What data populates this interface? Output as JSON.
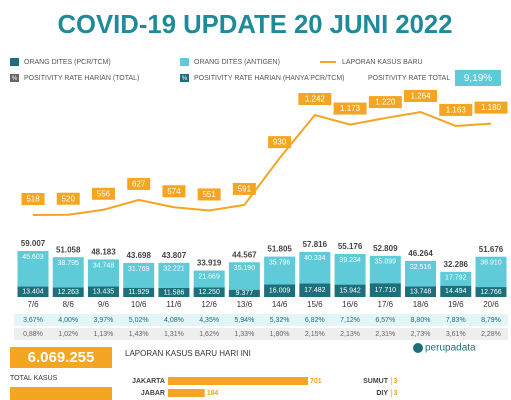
{
  "title": "COVID-19 UPDATE 20 JUNI 2022",
  "legend_icon": "%",
  "logo": "perupadata",
  "total_cases": {
    "value": 6069255,
    "value_label": "6.069.255",
    "label": "TOTAL KASUS"
  },
  "chart_data": [
    {
      "type": "combo",
      "categories": [
        "7/6",
        "8/6",
        "9/6",
        "10/6",
        "11/6",
        "12/6",
        "13/6",
        "14/6",
        "15/6",
        "16/6",
        "17/6",
        "18/6",
        "19/6",
        "20/6"
      ],
      "series": [
        {
          "name": "ORANG DITES (PCR/TCM)",
          "color": "#1d6f7c",
          "kind": "bar",
          "values": [
            13404,
            12263,
            13435,
            11929,
            11586,
            12250,
            9377,
            16009,
            17482,
            15942,
            17710,
            13748,
            14494,
            12766
          ],
          "value_labels": [
            "13.404",
            "12.263",
            "13.435",
            "11.929",
            "11.586",
            "12.250",
            "9.377",
            "16.009",
            "17.482",
            "15.942",
            "17.710",
            "13.748",
            "14.494",
            "12.766"
          ]
        },
        {
          "name": "ORANG DITES (ANTIGEN)",
          "color": "#5fcad8",
          "kind": "bar",
          "values": [
            45603,
            38795,
            34748,
            31769,
            32221,
            21669,
            35190,
            35796,
            40334,
            39234,
            35099,
            32516,
            17792,
            38910
          ],
          "value_labels": [
            "45.603",
            "38.795",
            "34.748",
            "31.769",
            "32.221",
            "21.669",
            "35.190",
            "35.796",
            "40.334",
            "39.234",
            "35.099",
            "32.516",
            "17.792",
            "38.910"
          ]
        },
        {
          "name": "LAPORAN KASUS BARU",
          "color": "#f4a522",
          "kind": "line",
          "values": [
            518,
            520,
            556,
            627,
            574,
            551,
            591,
            930,
            1242,
            1173,
            1220,
            1264,
            1163,
            1180
          ],
          "value_labels": [
            "518",
            "520",
            "556",
            "627",
            "574",
            "551",
            "591",
            "930",
            "1.242",
            "1.173",
            "1.220",
            "1.264",
            "1.163",
            "1.180"
          ]
        }
      ],
      "totals": {
        "values": [
          59007,
          51058,
          48183,
          43698,
          43807,
          33919,
          44567,
          51805,
          57816,
          55176,
          52809,
          46264,
          32286,
          51676
        ],
        "value_labels": [
          "59.007",
          "51.058",
          "48.183",
          "43.698",
          "43.807",
          "33.919",
          "44.567",
          "51.805",
          "57.816",
          "55.176",
          "52.809",
          "46.264",
          "32.286",
          "51.676"
        ]
      },
      "positivity": [
        {
          "name": "POSITIVITY RATE HARIAN (TOTAL)",
          "color": "#666666",
          "values": [
            0.88,
            1.02,
            1.13,
            1.43,
            1.31,
            1.62,
            1.33,
            1.8,
            2.15,
            2.13,
            2.31,
            2.73,
            3.61,
            2.28
          ],
          "value_labels": [
            "0,88%",
            "1,02%",
            "1,13%",
            "1,43%",
            "1,31%",
            "1,62%",
            "1,33%",
            "1,80%",
            "2,15%",
            "2,13%",
            "2,31%",
            "2,73%",
            "3,61%",
            "2,28%"
          ]
        },
        {
          "name": "POSITIVITY RATE HARIAN (HANYA PCR/TCM)",
          "color": "#1d6f7c",
          "values": [
            3.67,
            4.0,
            3.97,
            5.02,
            4.08,
            4.35,
            5.94,
            5.32,
            6.82,
            7.12,
            6.57,
            8.8,
            7.83,
            8.79
          ],
          "value_labels": [
            "3,67%",
            "4,00%",
            "3,97%",
            "5,02%",
            "4,08%",
            "4,35%",
            "5,94%",
            "5,32%",
            "6,82%",
            "7,12%",
            "6,57%",
            "8,80%",
            "7,83%",
            "8,79%"
          ]
        }
      ],
      "positivity_total": {
        "label": "POSITIVITY RATE TOTAL",
        "value": 9.19,
        "value_label": "9,19%",
        "color": "#5fcad8"
      }
    },
    {
      "type": "hbar",
      "title": "LAPORAN KASUS BARU HARI INI",
      "color": "#f4a522",
      "categories": [
        "JAKARTA",
        "JABAR",
        "SUMUT",
        "DIY"
      ],
      "values": [
        701,
        184,
        3,
        3
      ]
    }
  ]
}
